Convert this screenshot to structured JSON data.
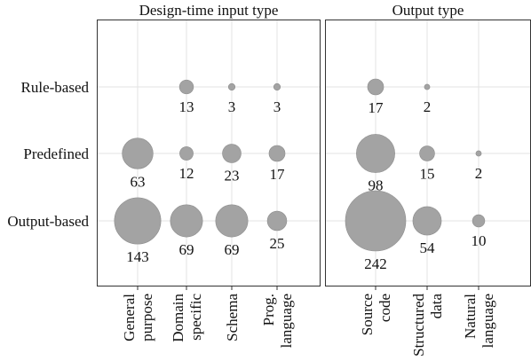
{
  "chart_data": {
    "type": "scatter",
    "encoding": "bubble-size",
    "rows": [
      "Rule-based",
      "Predefined",
      "Output-based"
    ],
    "panels": [
      {
        "title": "Design-time input type",
        "categories": [
          [
            "General",
            "purpose"
          ],
          [
            "Domain",
            "specific"
          ],
          [
            "Schema",
            ""
          ],
          [
            "Prog.",
            "language"
          ]
        ],
        "values": [
          [
            null,
            13,
            3,
            3
          ],
          [
            63,
            12,
            23,
            17
          ],
          [
            143,
            69,
            69,
            25
          ]
        ]
      },
      {
        "title": "Output type",
        "categories": [
          [
            "Source",
            "code"
          ],
          [
            "Structured",
            "data"
          ],
          [
            "Natural",
            "language"
          ]
        ],
        "values": [
          [
            17,
            2,
            null
          ],
          [
            98,
            15,
            2
          ],
          [
            242,
            54,
            10
          ]
        ]
      }
    ],
    "colors": {
      "bubble": "#a3a3a3",
      "grid": "#e3e3e3",
      "frame": "#333333"
    },
    "grid": true
  }
}
